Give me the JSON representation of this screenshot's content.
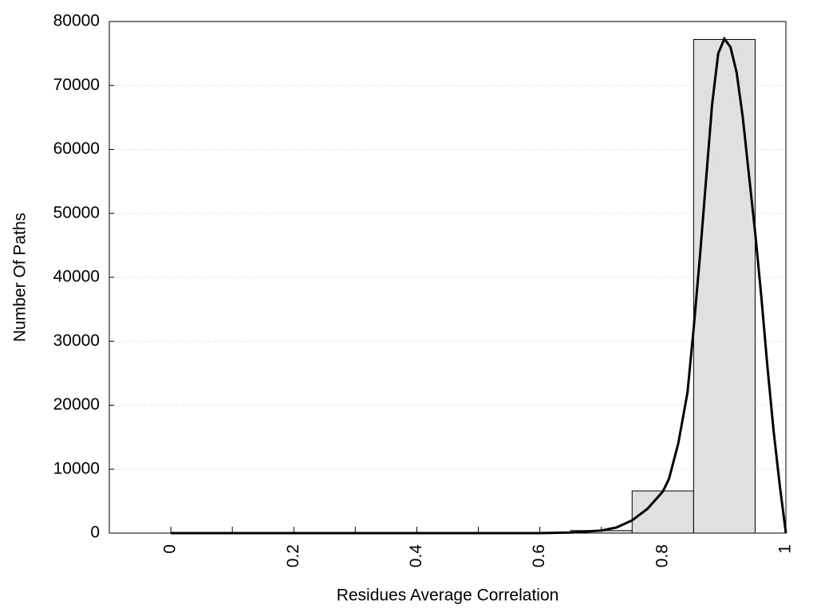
{
  "chart_data": {
    "type": "histogram",
    "xlabel": "Residues Average Correlation",
    "ylabel": "Number Of Paths",
    "bins": [
      0.65,
      0.75,
      0.85,
      0.95
    ],
    "values": [
      400,
      6600,
      77200
    ],
    "color": "#e0e0e0",
    "curve": {
      "x": [
        0,
        0.1,
        0.2,
        0.3,
        0.4,
        0.5,
        0.6,
        0.65,
        0.7,
        0.725,
        0.75,
        0.775,
        0.8,
        0.81,
        0.825,
        0.84,
        0.85,
        0.86,
        0.87,
        0.88,
        0.89,
        0.9,
        0.91,
        0.92,
        0.93,
        0.94,
        0.95,
        0.96,
        0.97,
        0.98,
        0.99,
        1
      ],
      "values": [
        0,
        0,
        0,
        0,
        0,
        0,
        0,
        100,
        400,
        900,
        2000,
        3800,
        6500,
        8500,
        14000,
        22000,
        32000,
        43000,
        55000,
        67000,
        75000,
        77300,
        76000,
        72000,
        65000,
        56000,
        47000,
        37000,
        26000,
        16000,
        7500,
        0
      ],
      "color": "#000000"
    },
    "xlim": [
      -0.1,
      1
    ],
    "ylim": [
      0,
      80000
    ],
    "xticks": [
      0,
      0.2,
      0.4,
      0.6,
      0.8,
      1
    ],
    "xminor_ticks": [
      0.1,
      0.3,
      0.5,
      0.7,
      0.9
    ],
    "yticks": [
      0,
      10000,
      20000,
      30000,
      40000,
      50000,
      60000,
      70000,
      80000
    ],
    "grid": true
  }
}
